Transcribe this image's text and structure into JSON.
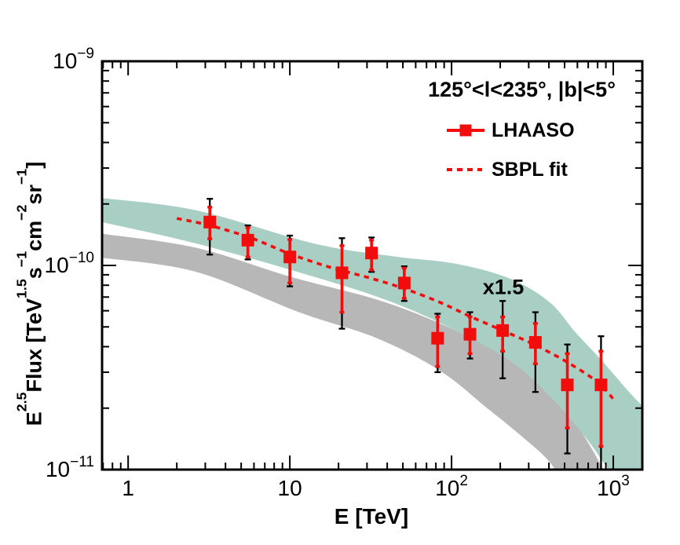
{
  "annotation": {
    "region": "125°<l<235°, |b|<5°",
    "scale_factor": "x1.5",
    "scale_factor_e": 209,
    "scale_factor_flux": 7.8e-11
  },
  "legend": {
    "items": [
      {
        "label": "LHAASO",
        "marker": "red-square-with-line"
      },
      {
        "label": "SBPL fit",
        "marker": "red-dotted-line"
      }
    ]
  },
  "colors": {
    "red": "#f20d0d",
    "band_upper": "#a9cec3",
    "band_lower": "#b7b7b7",
    "frame": "#000000",
    "text": "#000000"
  },
  "axes": {
    "x": {
      "label": "E [TeV]",
      "scale": "log",
      "min": 0.69,
      "max": 1512,
      "major_ticks": [
        1,
        10,
        100,
        1000
      ],
      "tick_labels": [
        {
          "value": 1,
          "base": "1",
          "exp": ""
        },
        {
          "value": 10,
          "base": "10",
          "exp": ""
        },
        {
          "value": 100,
          "base": "10",
          "exp": "2"
        },
        {
          "value": 1000,
          "base": "10",
          "exp": "3"
        }
      ]
    },
    "y": {
      "label_segments": [
        {
          "t": "E"
        },
        {
          "t": "2.5",
          "sup": true
        },
        {
          "t": "Flux [TeV"
        },
        {
          "t": "1.5",
          "sup": true
        },
        {
          "t": "s"
        },
        {
          "t": "−1",
          "sup": true
        },
        {
          "t": "cm"
        },
        {
          "t": "−2",
          "sup": true
        },
        {
          "t": "sr"
        },
        {
          "t": "−1",
          "sup": true
        },
        {
          "t": "]"
        }
      ],
      "scale": "log",
      "min": 1e-11,
      "max": 1e-09,
      "major_ticks": [
        1e-09,
        1e-10,
        1e-11
      ],
      "tick_labels": [
        {
          "value": 1e-09,
          "base": "10",
          "exp": "−9"
        },
        {
          "value": 1e-10,
          "base": "10",
          "exp": "−10"
        },
        {
          "value": 1e-11,
          "base": "10",
          "exp": "−11"
        }
      ]
    }
  },
  "chart_data": {
    "type": "scatter",
    "title": "",
    "xlabel": "E [TeV]",
    "ylabel": "E^2.5 Flux [TeV^1.5 s^-1 cm^-2 sr^-1]",
    "x_scale": "log",
    "y_scale": "log",
    "xlim": [
      0.69,
      1512
    ],
    "ylim": [
      1e-11,
      1e-09
    ],
    "grid": false,
    "legend_position": "top-right",
    "series": [
      {
        "name": "LHAASO",
        "type": "points_with_errorbars",
        "marker": "filled-square",
        "color": "#f20d0d",
        "points": [
          {
            "e": 3.2,
            "flux": 1.63e-10,
            "stat": [
              1.35e-10,
              1.93e-10
            ],
            "total": [
              1.13e-10,
              2.12e-10
            ]
          },
          {
            "e": 5.5,
            "flux": 1.33e-10,
            "stat": [
              1.1e-10,
              1.53e-10
            ],
            "total": [
              1.07e-10,
              1.57e-10
            ]
          },
          {
            "e": 10,
            "flux": 1.1e-10,
            "stat": [
              8.2e-11,
              1.34e-10
            ],
            "total": [
              7.9e-11,
              1.4e-10
            ]
          },
          {
            "e": 21,
            "flux": 9.2e-11,
            "stat": [
              5.9e-11,
              1.25e-10
            ],
            "total": [
              4.9e-11,
              1.36e-10
            ]
          },
          {
            "e": 32,
            "flux": 1.15e-10,
            "stat": [
              9.5e-11,
              1.33e-10
            ],
            "total": [
              9.3e-11,
              1.37e-10
            ]
          },
          {
            "e": 51,
            "flux": 8.2e-11,
            "stat": [
              6.9e-11,
              9.7e-11
            ],
            "total": [
              6.7e-11,
              9.9e-11
            ]
          },
          {
            "e": 82,
            "flux": 4.4e-11,
            "stat": [
              3.2e-11,
              5.6e-11
            ],
            "total": [
              3e-11,
              5.8e-11
            ]
          },
          {
            "e": 130,
            "flux": 4.6e-11,
            "stat": [
              3.7e-11,
              5.6e-11
            ],
            "total": [
              3.5e-11,
              5.9e-11
            ]
          },
          {
            "e": 207,
            "flux": 4.8e-11,
            "stat": [
              3.8e-11,
              5.6e-11
            ],
            "total": [
              2.8e-11,
              6.7e-11
            ]
          },
          {
            "e": 330,
            "flux": 4.2e-11,
            "stat": [
              3.3e-11,
              5.2e-11
            ],
            "total": [
              2.4e-11,
              5.9e-11
            ]
          },
          {
            "e": 520,
            "flux": 2.6e-11,
            "stat": [
              1.6e-11,
              3.7e-11
            ],
            "total": [
              1.2e-11,
              4.1e-11
            ]
          },
          {
            "e": 840,
            "flux": 2.6e-11,
            "stat": [
              1.3e-11,
              3.8e-11
            ],
            "total": [
              1e-11,
              4.5e-11
            ]
          }
        ]
      },
      {
        "name": "SBPL fit",
        "type": "dotted_line",
        "color": "#f20d0d",
        "points": [
          [
            2.0,
            1.7e-10
          ],
          [
            3.2,
            1.57e-10
          ],
          [
            5.8,
            1.36e-10
          ],
          [
            10,
            1.14e-10
          ],
          [
            17.7,
            9.8e-11
          ],
          [
            30.9,
            8.7e-11
          ],
          [
            51,
            7.7e-11
          ],
          [
            84.6,
            6.6e-11
          ],
          [
            132,
            5.6e-11
          ],
          [
            207,
            4.8e-11
          ],
          [
            323,
            4.1e-11
          ],
          [
            506,
            3.4e-11
          ],
          [
            791,
            2.7e-11
          ],
          [
            1010,
            2.2e-11
          ]
        ]
      },
      {
        "name": "model-band-upper",
        "type": "band",
        "color": "#a9cec3",
        "top": [
          [
            0.69,
            2.14e-10
          ],
          [
            2.64,
            1.86e-10
          ],
          [
            14.1,
            1.28e-10
          ],
          [
            43,
            1.11e-10
          ],
          [
            106,
            1.02e-10
          ],
          [
            231,
            8.6e-11
          ],
          [
            404,
            6.6e-11
          ],
          [
            584,
            4.7e-11
          ],
          [
            855,
            3.4e-11
          ],
          [
            1236,
            2.43e-11
          ],
          [
            1512,
            2.05e-11
          ]
        ],
        "bottom": [
          [
            0.69,
            1.63e-10
          ],
          [
            2.64,
            1.28e-10
          ],
          [
            14.1,
            8.8e-11
          ],
          [
            43,
            6.6e-11
          ],
          [
            106,
            4.8e-11
          ],
          [
            231,
            3.4e-11
          ],
          [
            404,
            2.3e-11
          ],
          [
            668,
            1.45e-11
          ],
          [
            935,
            1e-11
          ],
          [
            1512,
            6e-12
          ]
        ]
      },
      {
        "name": "model-band-lower",
        "type": "band",
        "color": "#b7b7b7",
        "top": [
          [
            0.69,
            1.43e-10
          ],
          [
            2.64,
            1.22e-10
          ],
          [
            10.1,
            8.8e-11
          ],
          [
            34.6,
            6.8e-11
          ],
          [
            84.8,
            5.2e-11
          ],
          [
            166,
            4e-11
          ],
          [
            273,
            3.1e-11
          ],
          [
            404,
            2.3e-11
          ],
          [
            564,
            1.75e-11
          ],
          [
            730,
            1.28e-11
          ],
          [
            867,
            1e-11
          ]
        ],
        "bottom": [
          [
            0.69,
            1.09e-10
          ],
          [
            2.64,
            9.3e-11
          ],
          [
            11.4,
            5.9e-11
          ],
          [
            34.6,
            4.4e-11
          ],
          [
            84.8,
            3.05e-11
          ],
          [
            166,
            2e-11
          ],
          [
            273,
            1.45e-11
          ],
          [
            404,
            1.09e-11
          ],
          [
            506,
            8e-12
          ]
        ]
      }
    ]
  }
}
